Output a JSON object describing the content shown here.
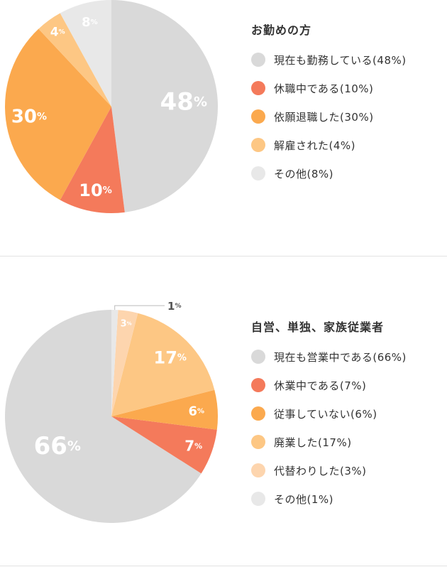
{
  "chart_data": [
    {
      "type": "pie",
      "title": "お勤めの方",
      "unit": "%",
      "slices": [
        {
          "label": "現在も勤務している(48%)",
          "value": 48,
          "color": "#d9d9d9"
        },
        {
          "label": "休職中である(10%)",
          "value": 10,
          "color": "#f47a5b"
        },
        {
          "label": "依願退職した(30%)",
          "value": 30,
          "color": "#fba94e"
        },
        {
          "label": "解雇された(4%)",
          "value": 4,
          "color": "#fdc784"
        },
        {
          "label": "その他(8%)",
          "value": 8,
          "color": "#e8e8e8"
        }
      ]
    },
    {
      "type": "pie",
      "title": "自営、単独、家族従業者",
      "unit": "%",
      "slices": [
        {
          "label": "現在も営業中である(66%)",
          "value": 66,
          "color": "#d9d9d9"
        },
        {
          "label": "休業中である(7%)",
          "value": 7,
          "color": "#f47a5b"
        },
        {
          "label": "従事していない(6%)",
          "value": 6,
          "color": "#fba94e"
        },
        {
          "label": "廃業した(17%)",
          "value": 17,
          "color": "#fdc784"
        },
        {
          "label": "代替わりした(3%)",
          "value": 3,
          "color": "#fdd5ae"
        },
        {
          "label": "その他(1%)",
          "value": 1,
          "color": "#e8e8e8"
        }
      ]
    }
  ]
}
